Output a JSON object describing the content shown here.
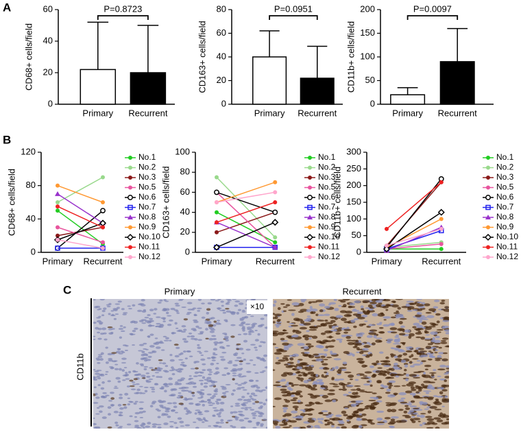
{
  "panel_labels": [
    "A",
    "B",
    "C"
  ],
  "chart_data": [
    {
      "type": "bar",
      "ylabel": "CD68+ cells/field",
      "categories": [
        "Primary",
        "Recurrent"
      ],
      "values": [
        22,
        20
      ],
      "errors": [
        30,
        30
      ],
      "colors": [
        "#ffffff",
        "#000000"
      ],
      "annotation": "P=0.8723",
      "ylim": [
        0,
        60
      ],
      "yticks": [
        0,
        20,
        40,
        60
      ]
    },
    {
      "type": "bar",
      "ylabel": "CD163+ cells/field",
      "categories": [
        "Primary",
        "Recurrent"
      ],
      "values": [
        40,
        22
      ],
      "errors": [
        22,
        27
      ],
      "colors": [
        "#ffffff",
        "#000000"
      ],
      "annotation": "P=0.0951",
      "ylim": [
        0,
        80
      ],
      "yticks": [
        0,
        20,
        40,
        60,
        80
      ]
    },
    {
      "type": "bar",
      "ylabel": "CD11b+ cells/field",
      "categories": [
        "Primary",
        "Recurrent"
      ],
      "values": [
        20,
        90
      ],
      "errors": [
        15,
        70
      ],
      "colors": [
        "#ffffff",
        "#000000"
      ],
      "annotation": "P=0.0097",
      "ylim": [
        0,
        200
      ],
      "yticks": [
        0,
        50,
        100,
        150,
        200
      ]
    },
    {
      "type": "line",
      "ylabel": "CD68+ cells/field",
      "categories": [
        "Primary",
        "Recurrent"
      ],
      "ylim": [
        0,
        120
      ],
      "yticks": [
        0,
        40,
        80,
        120
      ],
      "series": [
        {
          "name": "No.1",
          "color": "#22cc22",
          "marker": "circle",
          "values": [
            50,
            10
          ]
        },
        {
          "name": "No.2",
          "color": "#99d98c",
          "marker": "circle",
          "values": [
            60,
            90
          ]
        },
        {
          "name": "No.3",
          "color": "#8b1a1a",
          "marker": "circle",
          "values": [
            20,
            30
          ]
        },
        {
          "name": "No.5",
          "color": "#e8559e",
          "marker": "circle",
          "values": [
            30,
            12
          ]
        },
        {
          "name": "No.6",
          "color": "#000000",
          "marker": "open-circle",
          "values": [
            5,
            50
          ]
        },
        {
          "name": "No.7",
          "color": "#2222ee",
          "marker": "square",
          "values": [
            5,
            5
          ]
        },
        {
          "name": "No.8",
          "color": "#9933cc",
          "marker": "triangle",
          "values": [
            70,
            35
          ]
        },
        {
          "name": "No.9",
          "color": "#ff9933",
          "marker": "circle",
          "values": [
            80,
            60
          ]
        },
        {
          "name": "No.10",
          "color": "#000000",
          "marker": "diamond",
          "values": [
            15,
            35
          ]
        },
        {
          "name": "No.11",
          "color": "#ee2222",
          "marker": "circle",
          "values": [
            55,
            30
          ]
        },
        {
          "name": "No.12",
          "color": "#ffa6cc",
          "marker": "circle",
          "values": [
            15,
            5
          ]
        }
      ]
    },
    {
      "type": "line",
      "ylabel": "CD163+ cells/field",
      "categories": [
        "Primary",
        "Recurrent"
      ],
      "ylim": [
        0,
        100
      ],
      "yticks": [
        0,
        20,
        40,
        60,
        80,
        100
      ],
      "series": [
        {
          "name": "No.1",
          "color": "#22cc22",
          "marker": "circle",
          "values": [
            40,
            10
          ]
        },
        {
          "name": "No.2",
          "color": "#99d98c",
          "marker": "circle",
          "values": [
            75,
            15
          ]
        },
        {
          "name": "No.3",
          "color": "#8b1a1a",
          "marker": "circle",
          "values": [
            20,
            40
          ]
        },
        {
          "name": "No.5",
          "color": "#e8559e",
          "marker": "circle",
          "values": [
            60,
            5
          ]
        },
        {
          "name": "No.6",
          "color": "#000000",
          "marker": "open-circle",
          "values": [
            60,
            40
          ]
        },
        {
          "name": "No.7",
          "color": "#2222ee",
          "marker": "square",
          "values": [
            5,
            5
          ]
        },
        {
          "name": "No.8",
          "color": "#9933cc",
          "marker": "triangle",
          "values": [
            30,
            5
          ]
        },
        {
          "name": "No.9",
          "color": "#ff9933",
          "marker": "circle",
          "values": [
            50,
            70
          ]
        },
        {
          "name": "No.10",
          "color": "#000000",
          "marker": "diamond",
          "values": [
            5,
            30
          ]
        },
        {
          "name": "No.11",
          "color": "#ee2222",
          "marker": "circle",
          "values": [
            30,
            50
          ]
        },
        {
          "name": "No.12",
          "color": "#ffa6cc",
          "marker": "circle",
          "values": [
            50,
            60
          ]
        }
      ]
    },
    {
      "type": "line",
      "ylabel": "CD11b+ cells/field",
      "categories": [
        "Primary",
        "Recurrent"
      ],
      "ylim": [
        0,
        300
      ],
      "yticks": [
        0,
        50,
        100,
        150,
        200,
        250,
        300
      ],
      "series": [
        {
          "name": "No.1",
          "color": "#22cc22",
          "marker": "circle",
          "values": [
            10,
            10
          ]
        },
        {
          "name": "No.2",
          "color": "#99d98c",
          "marker": "circle",
          "values": [
            15,
            30
          ]
        },
        {
          "name": "No.3",
          "color": "#8b1a1a",
          "marker": "circle",
          "values": [
            20,
            210
          ]
        },
        {
          "name": "No.5",
          "color": "#e8559e",
          "marker": "circle",
          "values": [
            10,
            25
          ]
        },
        {
          "name": "No.6",
          "color": "#000000",
          "marker": "open-circle",
          "values": [
            15,
            220
          ]
        },
        {
          "name": "No.7",
          "color": "#2222ee",
          "marker": "square",
          "values": [
            10,
            65
          ]
        },
        {
          "name": "No.8",
          "color": "#9933cc",
          "marker": "triangle",
          "values": [
            5,
            75
          ]
        },
        {
          "name": "No.9",
          "color": "#ff9933",
          "marker": "circle",
          "values": [
            15,
            100
          ]
        },
        {
          "name": "No.10",
          "color": "#000000",
          "marker": "diamond",
          "values": [
            10,
            120
          ]
        },
        {
          "name": "No.11",
          "color": "#ee2222",
          "marker": "circle",
          "values": [
            70,
            210
          ]
        },
        {
          "name": "No.12",
          "color": "#ffa6cc",
          "marker": "circle",
          "values": [
            20,
            70
          ]
        }
      ]
    }
  ],
  "micrographs": {
    "row_label": "CD11b",
    "columns": [
      "Primary",
      "Recurrent"
    ],
    "magnification": "×10"
  }
}
